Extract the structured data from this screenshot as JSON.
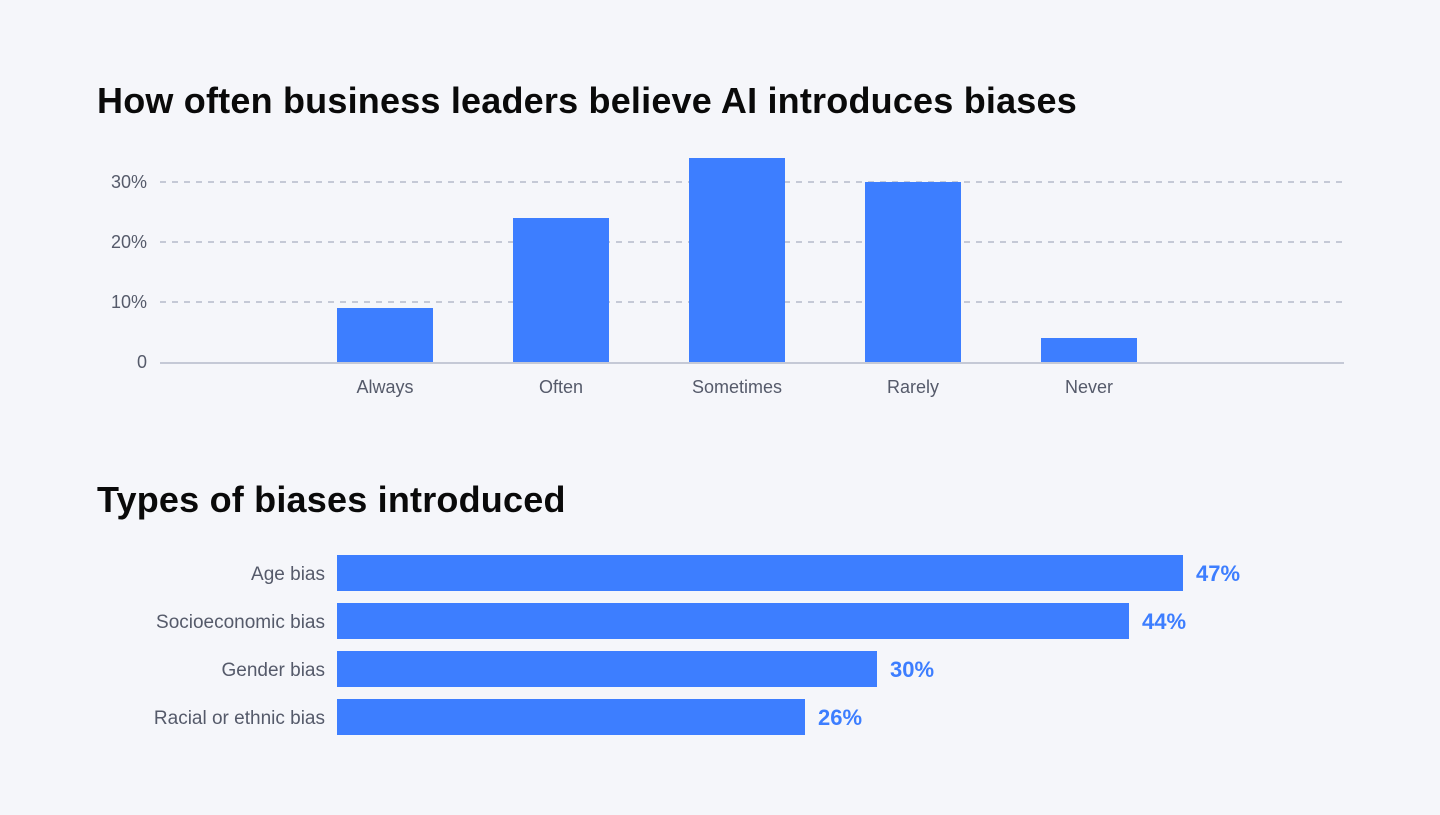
{
  "colors": {
    "bar": "#3d7eff",
    "grid": "#c5c9d6",
    "axis": "#c5c9d6",
    "text": "#555a6a",
    "background": "#f5f6fa"
  },
  "chart_data": [
    {
      "type": "bar",
      "title": "How often business leaders believe AI introduces biases",
      "categories": [
        "Always",
        "Often",
        "Sometimes",
        "Rarely",
        "Never"
      ],
      "values": [
        9,
        24,
        34,
        30,
        4
      ],
      "unit": "%",
      "ylim": [
        0,
        30
      ],
      "yticks": [
        0,
        10,
        20,
        30
      ],
      "ytick_labels": [
        "0",
        "10%",
        "20%",
        "30%"
      ],
      "grid": "dashed horizontal",
      "xlabel": "",
      "ylabel": ""
    },
    {
      "type": "bar",
      "orientation": "horizontal",
      "title": "Types of biases introduced",
      "categories": [
        "Age bias",
        "Socioeconomic bias",
        "Gender bias",
        "Racial or ethnic bias"
      ],
      "values": [
        47,
        44,
        30,
        26
      ],
      "value_labels": [
        "47%",
        "44%",
        "30%",
        "26%"
      ],
      "unit": "%",
      "grid": "off"
    }
  ]
}
